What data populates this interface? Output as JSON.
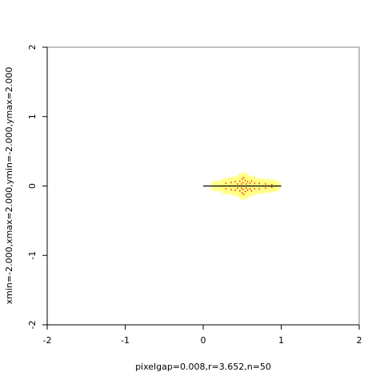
{
  "chart_data": {
    "type": "scatter",
    "title": "",
    "xlabel": "pixelgap=0.008,r=3.652,n=50",
    "ylabel": "xmin=-2.000,xmax=2.000,ymin=-2.000,ymax=2.000",
    "xlim": [
      -2,
      2
    ],
    "ylim": [
      -2,
      2
    ],
    "x_ticks": [
      "-2",
      "-1",
      "0",
      "1",
      "2"
    ],
    "y_ticks": [
      "-2",
      "-1",
      "0",
      "1",
      "2"
    ],
    "grid": false,
    "legend": "none",
    "segment": {
      "x": [
        0,
        1
      ],
      "y": [
        0,
        0
      ],
      "color": "#000000"
    },
    "marker_color": "#ffff80",
    "center_color": "#ff0000",
    "series": [
      {
        "points": [
          {
            "x": 0.16,
            "y": 0.0
          },
          {
            "x": 0.22,
            "y": 0.0
          },
          {
            "x": 0.27,
            "y": 0.0
          },
          {
            "x": 0.29,
            "y": 0.04
          },
          {
            "x": 0.29,
            "y": -0.04
          },
          {
            "x": 0.35,
            "y": 0.0
          },
          {
            "x": 0.36,
            "y": 0.05
          },
          {
            "x": 0.36,
            "y": -0.05
          },
          {
            "x": 0.4,
            "y": 0.0
          },
          {
            "x": 0.41,
            "y": 0.06
          },
          {
            "x": 0.41,
            "y": -0.06
          },
          {
            "x": 0.44,
            "y": 0.03
          },
          {
            "x": 0.44,
            "y": -0.03
          },
          {
            "x": 0.46,
            "y": 0.0
          },
          {
            "x": 0.47,
            "y": 0.07
          },
          {
            "x": 0.47,
            "y": -0.07
          },
          {
            "x": 0.49,
            "y": 0.03
          },
          {
            "x": 0.49,
            "y": -0.03
          },
          {
            "x": 0.5,
            "y": 0.1
          },
          {
            "x": 0.5,
            "y": -0.1
          },
          {
            "x": 0.5,
            "y": 0.0
          },
          {
            "x": 0.51,
            "y": 0.05
          },
          {
            "x": 0.51,
            "y": -0.05
          },
          {
            "x": 0.52,
            "y": 0.12
          },
          {
            "x": 0.52,
            "y": -0.12
          },
          {
            "x": 0.53,
            "y": 0.0
          },
          {
            "x": 0.54,
            "y": 0.08
          },
          {
            "x": 0.54,
            "y": -0.08
          },
          {
            "x": 0.55,
            "y": 0.03
          },
          {
            "x": 0.55,
            "y": -0.03
          },
          {
            "x": 0.57,
            "y": 0.06
          },
          {
            "x": 0.57,
            "y": -0.06
          },
          {
            "x": 0.58,
            "y": 0.0
          },
          {
            "x": 0.6,
            "y": 0.04
          },
          {
            "x": 0.6,
            "y": -0.04
          },
          {
            "x": 0.62,
            "y": 0.07
          },
          {
            "x": 0.62,
            "y": -0.07
          },
          {
            "x": 0.64,
            "y": 0.0
          },
          {
            "x": 0.66,
            "y": 0.04
          },
          {
            "x": 0.66,
            "y": -0.04
          },
          {
            "x": 0.7,
            "y": 0.0
          },
          {
            "x": 0.72,
            "y": 0.04
          },
          {
            "x": 0.72,
            "y": -0.04
          },
          {
            "x": 0.77,
            "y": 0.0
          },
          {
            "x": 0.8,
            "y": 0.03
          },
          {
            "x": 0.8,
            "y": -0.03
          },
          {
            "x": 0.85,
            "y": 0.0
          },
          {
            "x": 0.88,
            "y": 0.02
          },
          {
            "x": 0.88,
            "y": -0.02
          },
          {
            "x": 0.93,
            "y": 0.0
          }
        ]
      }
    ]
  }
}
